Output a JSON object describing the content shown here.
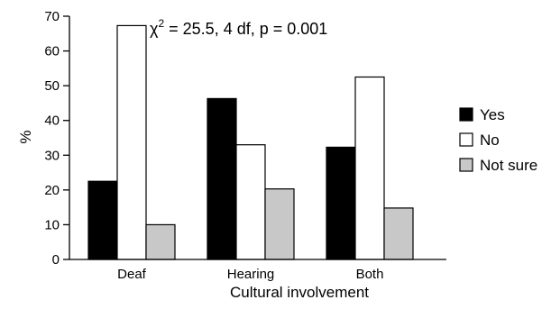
{
  "chart_data": {
    "type": "bar",
    "title": "",
    "xlabel": "Cultural involvement",
    "ylabel": "%",
    "ylim": [
      0,
      70
    ],
    "yticks": [
      0,
      10,
      20,
      30,
      40,
      50,
      60,
      70
    ],
    "grid": false,
    "legend_position": "right",
    "categories": [
      "Deaf",
      "Hearing",
      "Both"
    ],
    "series": [
      {
        "name": "Yes",
        "values": [
          22.5,
          46.3,
          32.3
        ],
        "color": "#000000"
      },
      {
        "name": "No",
        "values": [
          67.3,
          33.0,
          52.5
        ],
        "color": "#ffffff"
      },
      {
        "name": "Not sure",
        "values": [
          10.0,
          20.3,
          14.8
        ],
        "color": "#c8c8c8"
      }
    ],
    "annotation": {
      "prefix": "χ",
      "superscript": "2",
      "rest": " = 25.5, 4 df, p = 0.001"
    }
  }
}
